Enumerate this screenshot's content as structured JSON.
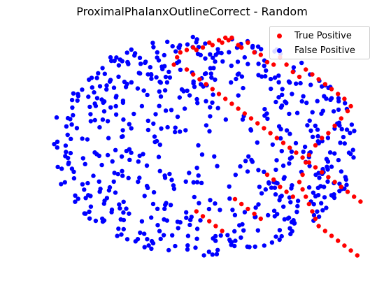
{
  "chart_data": {
    "type": "scatter",
    "title": "ProximalPhalanxOutlineCorrect - Random",
    "xlabel": "",
    "ylabel": "",
    "axes_visible": false,
    "xlim": [
      0,
      100
    ],
    "ylim": [
      0,
      100
    ],
    "legend_position": "top-right",
    "series": [
      {
        "name": "True Positive",
        "color": "#ff0000",
        "points": [
          [
            41,
            85
          ],
          [
            42,
            88
          ],
          [
            43,
            90
          ],
          [
            45,
            91
          ],
          [
            47,
            92
          ],
          [
            48,
            91
          ],
          [
            50,
            92
          ],
          [
            52,
            94
          ],
          [
            53,
            93
          ],
          [
            55,
            95
          ],
          [
            56,
            94
          ],
          [
            57,
            96
          ],
          [
            58,
            95
          ],
          [
            59,
            96
          ],
          [
            61,
            93
          ],
          [
            62,
            92
          ],
          [
            64,
            94
          ],
          [
            66,
            90
          ],
          [
            68,
            89
          ],
          [
            70,
            86
          ],
          [
            72,
            85
          ],
          [
            74,
            88
          ],
          [
            76,
            85
          ],
          [
            78,
            82
          ],
          [
            80,
            80
          ],
          [
            82,
            83
          ],
          [
            84,
            81
          ],
          [
            86,
            79
          ],
          [
            88,
            77
          ],
          [
            90,
            75
          ],
          [
            92,
            73
          ],
          [
            94,
            71
          ],
          [
            96,
            68
          ],
          [
            95,
            66
          ],
          [
            93,
            63
          ],
          [
            91,
            60
          ],
          [
            89,
            57
          ],
          [
            87,
            55
          ],
          [
            85,
            52
          ],
          [
            83,
            48
          ],
          [
            82,
            45
          ],
          [
            81,
            40
          ],
          [
            80,
            37
          ],
          [
            81,
            34
          ],
          [
            82,
            31
          ],
          [
            83,
            28
          ],
          [
            84,
            25
          ],
          [
            85,
            22
          ],
          [
            86,
            19
          ],
          [
            88,
            17
          ],
          [
            90,
            15
          ],
          [
            92,
            13
          ],
          [
            94,
            11
          ],
          [
            96,
            9
          ],
          [
            98,
            7
          ],
          [
            70,
            40
          ],
          [
            72,
            38
          ],
          [
            74,
            35
          ],
          [
            76,
            33
          ],
          [
            78,
            31
          ],
          [
            60,
            30
          ],
          [
            62,
            28
          ],
          [
            64,
            26
          ],
          [
            66,
            24
          ],
          [
            68,
            22
          ],
          [
            48,
            25
          ],
          [
            50,
            23
          ],
          [
            52,
            21
          ],
          [
            54,
            19
          ],
          [
            56,
            17
          ],
          [
            45,
            83
          ],
          [
            47,
            81
          ],
          [
            49,
            79
          ],
          [
            51,
            77
          ],
          [
            53,
            75
          ],
          [
            55,
            73
          ],
          [
            57,
            71
          ],
          [
            59,
            69
          ],
          [
            61,
            67
          ],
          [
            63,
            65
          ],
          [
            65,
            63
          ],
          [
            67,
            61
          ],
          [
            69,
            59
          ],
          [
            71,
            57
          ],
          [
            73,
            55
          ],
          [
            75,
            53
          ],
          [
            77,
            51
          ],
          [
            79,
            49
          ],
          [
            81,
            47
          ],
          [
            83,
            45
          ],
          [
            85,
            43
          ],
          [
            87,
            41
          ],
          [
            89,
            39
          ],
          [
            91,
            37
          ],
          [
            93,
            35
          ],
          [
            95,
            33
          ],
          [
            97,
            31
          ],
          [
            99,
            29
          ]
        ]
      },
      {
        "name": "False Positive",
        "color": "#0000ff",
        "points": []
      }
    ]
  },
  "legend": {
    "items": [
      {
        "label": "True Positive",
        "color": "#ff0000"
      },
      {
        "label": "False Positive",
        "color": "#0000ff"
      }
    ]
  }
}
